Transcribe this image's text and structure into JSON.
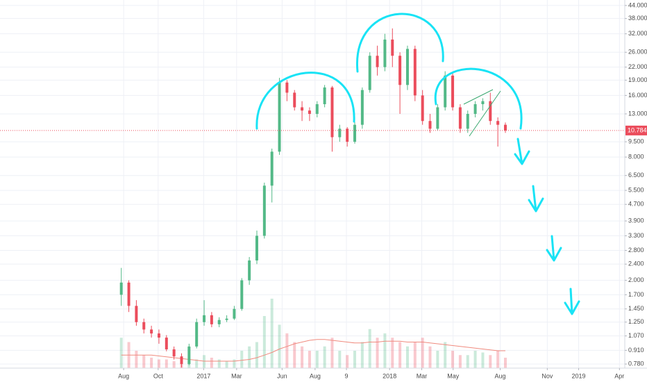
{
  "chart_data": {
    "type": "candlestick",
    "log_scale": true,
    "grid": true,
    "up_color": "#53b987",
    "down_color": "#eb4d5c",
    "volume_up_color": "rgba(83,185,135,0.3)",
    "volume_down_color": "rgba(235,77,92,0.3)",
    "volume_ma_color": "#f08a7e",
    "last_price": 10.784,
    "xlim": [
      -7.88,
      31.94
    ],
    "xticks": [
      {
        "value": 0,
        "label": "Aug"
      },
      {
        "value": 2.2,
        "label": "Oct"
      },
      {
        "value": 5.1,
        "label": "2017"
      },
      {
        "value": 7.2,
        "label": "Mar"
      },
      {
        "value": 10.1,
        "label": "Jun"
      },
      {
        "value": 12.2,
        "label": "Aug"
      },
      {
        "value": 14.2,
        "label": "9"
      },
      {
        "value": 16.95,
        "label": "2018"
      },
      {
        "value": 19,
        "label": "Mar"
      },
      {
        "value": 21,
        "label": "May"
      },
      {
        "value": 24,
        "label": "Aug"
      },
      {
        "value": 27,
        "label": "Nov"
      },
      {
        "value": 29,
        "label": "2019"
      },
      {
        "value": 31.6,
        "label": "Apr"
      }
    ],
    "ylim": [
      0.745,
      46.8
    ],
    "yticks": [
      {
        "value": 44,
        "label": "44.000"
      },
      {
        "value": 38,
        "label": "38.000"
      },
      {
        "value": 32,
        "label": "32.000"
      },
      {
        "value": 26,
        "label": "26.000"
      },
      {
        "value": 22,
        "label": "22.000"
      },
      {
        "value": 19,
        "label": "19.000"
      },
      {
        "value": 16,
        "label": "16.000"
      },
      {
        "value": 13,
        "label": "13.000"
      },
      {
        "value": 9.5,
        "label": "9.500"
      },
      {
        "value": 8,
        "label": "8.000"
      },
      {
        "value": 6.5,
        "label": "6.500"
      },
      {
        "value": 5.5,
        "label": "5.500"
      },
      {
        "value": 4.7,
        "label": "4.700"
      },
      {
        "value": 3.9,
        "label": "3.900"
      },
      {
        "value": 3.3,
        "label": "3.300"
      },
      {
        "value": 2.8,
        "label": "2.800"
      },
      {
        "value": 2.4,
        "label": "2.400"
      },
      {
        "value": 2,
        "label": "2.000"
      },
      {
        "value": 1.7,
        "label": "1.700"
      },
      {
        "value": 1.45,
        "label": "1.450"
      },
      {
        "value": 1.25,
        "label": "1.250"
      },
      {
        "value": 1.07,
        "label": "1.070"
      },
      {
        "value": 0.91,
        "label": "0.910"
      },
      {
        "value": 0.78,
        "label": "0.780"
      }
    ],
    "x": [
      -0.15,
      0.33,
      0.81,
      1.29,
      1.77,
      2.25,
      2.73,
      3.21,
      3.69,
      4.17,
      4.65,
      5.13,
      5.61,
      6.09,
      6.57,
      7.05,
      7.53,
      8.01,
      8.49,
      8.97,
      9.45,
      9.93,
      10.41,
      10.89,
      11.37,
      11.85,
      12.33,
      12.81,
      13.29,
      13.77,
      14.25,
      14.73,
      15.21,
      15.69,
      16.17,
      16.65,
      17.13,
      17.61,
      18.09,
      18.57,
      19.05,
      19.53,
      20.01,
      20.49,
      20.97,
      21.45,
      21.93,
      22.41,
      22.89,
      23.37,
      23.85,
      24.33
    ],
    "open": [
      1.7,
      1.95,
      1.5,
      1.25,
      1.15,
      1.1,
      1.05,
      0.92,
      0.85,
      0.78,
      0.95,
      1.25,
      1.35,
      1.22,
      1.28,
      1.3,
      1.45,
      2.0,
      2.5,
      3.3,
      5.8,
      8.5,
      18.5,
      16.5,
      14,
      13.5,
      13,
      14.5,
      17.5,
      10,
      11,
      9.5,
      11.5,
      17,
      25,
      22,
      30,
      25,
      18,
      27,
      16,
      12,
      11,
      14,
      20,
      14,
      11,
      13,
      14.5,
      15,
      12,
      11.5
    ],
    "high": [
      2.3,
      2.0,
      1.6,
      1.3,
      1.2,
      1.15,
      1.08,
      0.95,
      0.88,
      0.98,
      1.3,
      1.6,
      1.4,
      1.32,
      1.35,
      1.5,
      2.05,
      2.6,
      3.5,
      6.0,
      8.8,
      19.5,
      19,
      17,
      15,
      14,
      15,
      18,
      17.8,
      11.5,
      11.2,
      12,
      17.5,
      26,
      28,
      32,
      34,
      26,
      28,
      28,
      17,
      13,
      14.5,
      21,
      20.5,
      14.5,
      13.5,
      15,
      15.5,
      16.5,
      12.5,
      11.8
    ],
    "low": [
      1.5,
      1.4,
      1.2,
      1.1,
      1.05,
      0.98,
      0.9,
      0.82,
      0.75,
      0.77,
      0.93,
      1.2,
      1.18,
      1.18,
      1.25,
      1.28,
      1.42,
      1.9,
      2.4,
      3.2,
      4.8,
      8.2,
      15,
      13.5,
      12,
      12,
      12.5,
      14,
      8.5,
      9.5,
      9,
      9.3,
      11,
      16.5,
      20,
      21,
      22,
      13,
      17,
      15,
      11.5,
      10.5,
      10.8,
      13.5,
      13.5,
      10.5,
      10.5,
      12.5,
      13.5,
      11.5,
      9.0,
      10.5
    ],
    "close": [
      1.95,
      1.5,
      1.25,
      1.15,
      1.1,
      1.05,
      0.92,
      0.85,
      0.78,
      0.95,
      1.25,
      1.35,
      1.22,
      1.28,
      1.3,
      1.45,
      2.0,
      2.5,
      3.3,
      5.8,
      8.5,
      18.5,
      16.5,
      14,
      13.5,
      13,
      14.5,
      17.5,
      10,
      11,
      9.5,
      11.5,
      17,
      25,
      22,
      30,
      25,
      18,
      27,
      16,
      12,
      11,
      14,
      20,
      14,
      11,
      13,
      14.5,
      15,
      12,
      11.5,
      10.784
    ],
    "volume": [
      35,
      30,
      20,
      15,
      12,
      10,
      10,
      8,
      6,
      8,
      10,
      15,
      12,
      10,
      8,
      10,
      20,
      25,
      30,
      60,
      80,
      50,
      40,
      30,
      25,
      20,
      20,
      25,
      35,
      20,
      15,
      20,
      30,
      45,
      35,
      40,
      35,
      30,
      25,
      30,
      35,
      25,
      20,
      30,
      20,
      15,
      15,
      20,
      18,
      15,
      20,
      12
    ],
    "volume_ma": [
      15,
      15,
      15,
      15,
      15,
      14,
      13,
      12,
      11,
      10,
      9,
      8,
      8,
      8,
      8,
      8,
      9,
      10,
      12,
      15,
      18,
      22,
      25,
      28,
      30,
      32,
      33,
      33,
      32,
      31,
      30,
      29,
      29,
      30,
      30,
      31,
      31,
      31,
      30,
      30,
      30,
      29,
      28,
      27,
      26,
      25,
      24,
      23,
      22,
      21,
      20,
      20
    ]
  }
}
